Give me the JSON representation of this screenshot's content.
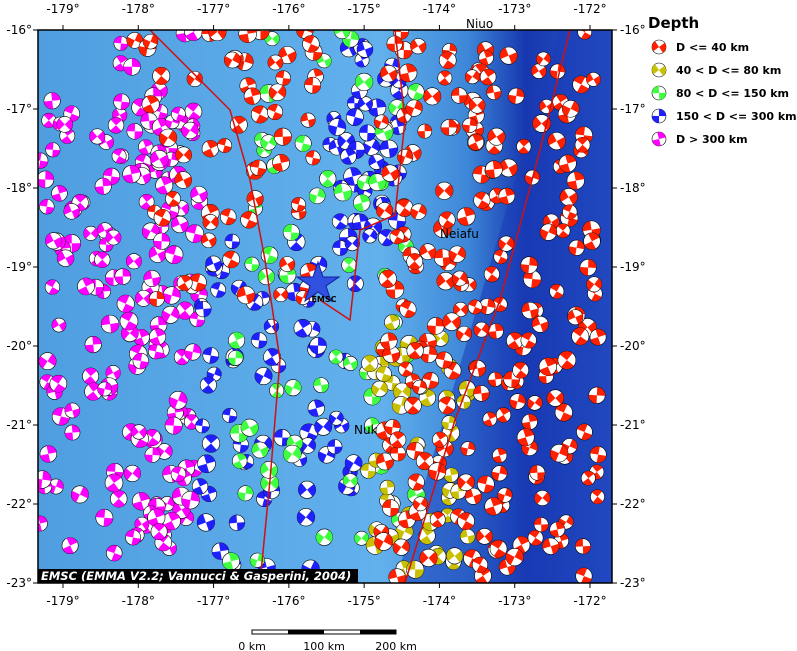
{
  "map": {
    "lon_labels": [
      "-179°",
      "-178°",
      "-177°",
      "-176°",
      "-175°",
      "-174°",
      "-173°",
      "-172°"
    ],
    "lat_labels": [
      "-16°",
      "-17°",
      "-18°",
      "-19°",
      "-20°",
      "-21°",
      "-22°",
      "-23°"
    ],
    "places": [
      "Niuo",
      "Neiafu",
      "Nuk"
    ],
    "marker": "EMSC",
    "credit": "EMSC (EMMA V2.2; Vannucci & Gasperini, 2004)",
    "scale_labels": [
      "0 km",
      "100 km",
      "200 km"
    ]
  },
  "legend": {
    "title": "Depth",
    "entries": [
      {
        "label": "D <= 40 km",
        "color": "#ff2000"
      },
      {
        "label": "40 < D <= 80 km",
        "color": "#c8c000"
      },
      {
        "label": "80 < D <= 150 km",
        "color": "#40ff40"
      },
      {
        "label": "150 < D <= 300 km",
        "color": "#2020ff"
      },
      {
        "label": "D > 300 km",
        "color": "#ff00ff"
      }
    ]
  }
}
